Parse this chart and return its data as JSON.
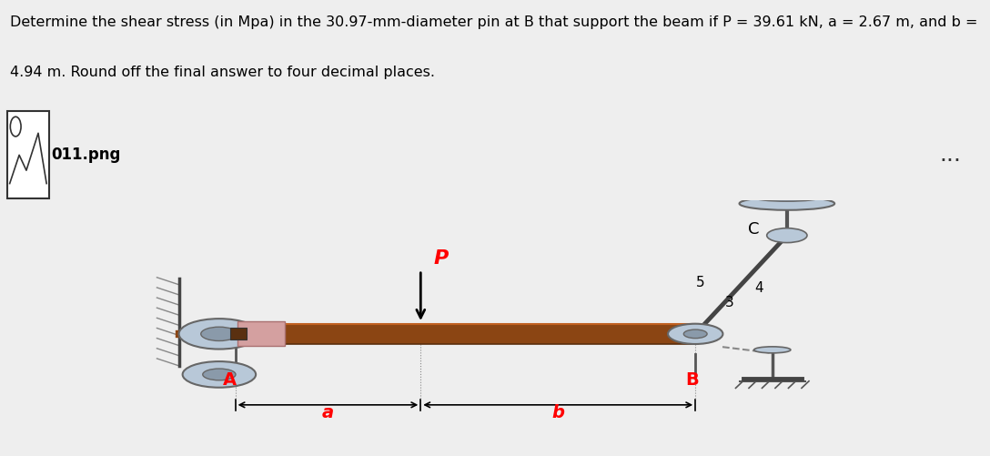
{
  "title_line1": "Determine the shear stress (in Mpa) in the 30.97-mm-diameter pin at B that support the beam if P = 39.61 kN, a = 2.67 m, and b =",
  "title_line2": "4.94 m. Round off the final answer to four decimal places.",
  "filename_label": "011.png",
  "bg_color": "#eeeeee",
  "diagram_bg": "#faf7e0",
  "beam_color": "#8B4513",
  "beam_color2": "#a0522d",
  "pin_color": "#b8c8d8",
  "pin_edge": "#666666",
  "label_a": "a",
  "label_b": "b",
  "label_A": "A",
  "label_B": "B",
  "label_C": "C",
  "numbers_3": "3",
  "numbers_4": "4",
  "numbers_5": "5",
  "label_P": "P",
  "title_fontsize": 11.5,
  "label_fontsize": 13,
  "three_dots": "...",
  "icon_label_fontsize": 12
}
